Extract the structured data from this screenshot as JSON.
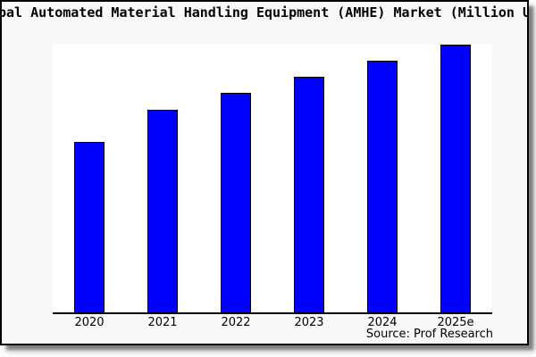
{
  "window": {
    "title": "Global Automated Material Handling Equipment (AMHE) Market (Million USD)"
  },
  "source": {
    "label": "Source: Prof Research"
  },
  "chart_data": {
    "type": "bar",
    "title": "Global Automated Material Handling Equipment (AMHE) Market (Million USD)",
    "categories": [
      "2020",
      "2021",
      "2022",
      "2023",
      "2024",
      "2025e"
    ],
    "values": [
      63,
      75,
      81.5,
      87.5,
      93.5,
      99.5
    ],
    "value_note": "no numeric y-axis shown; values estimated as % of plot height",
    "xlabel": "",
    "ylabel": "",
    "ylim": [
      0,
      100
    ],
    "grid": false,
    "legend": false,
    "bar_color": "#0000FF",
    "bar_edge_color": "#000000",
    "figure_background": "#F8F8F8",
    "plot_background": "#FFFFFF",
    "source_note": "Source: Prof Research"
  }
}
